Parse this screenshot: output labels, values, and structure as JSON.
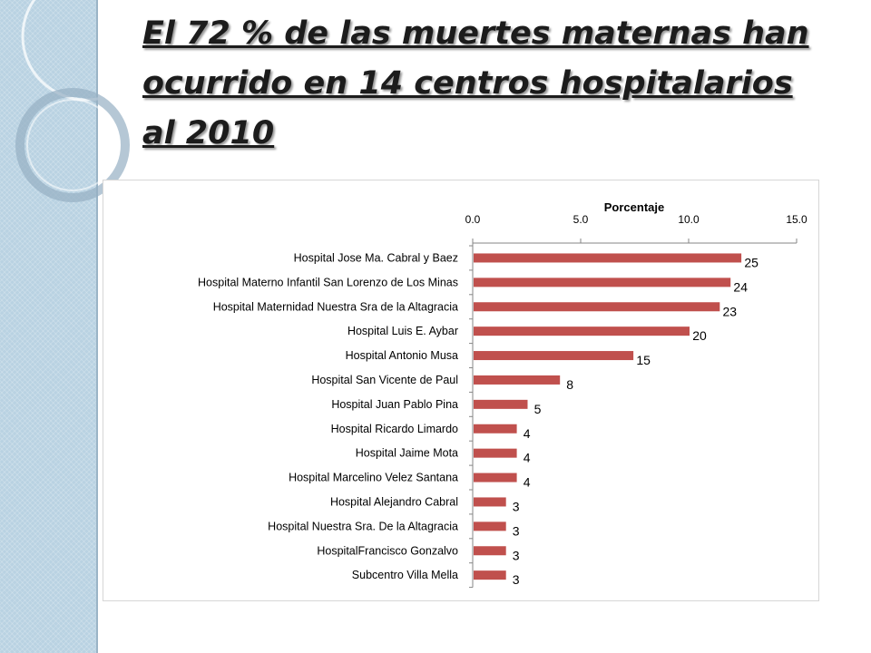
{
  "slide": {
    "title": "El 72 % de las muertes maternas han ocurrido en 14 centros hospitalarios al 2010"
  },
  "colors": {
    "bar": "#c0504d",
    "sidebar": "#b9d2e2"
  },
  "chart_data": {
    "type": "bar",
    "orientation": "horizontal",
    "title": "Porcentaje",
    "xlim": [
      0,
      15
    ],
    "xticks": [
      "0.0",
      "5.0",
      "10.0",
      "15.0"
    ],
    "axis_position": "top",
    "grid": false,
    "legend": "none",
    "categories": [
      "Hospital Jose Ma. Cabral y Baez",
      "Hospital Materno Infantil San Lorenzo de Los Minas",
      "Hospital Maternidad Nuestra Sra de la Altagracia",
      "Hospital Luis E. Aybar",
      "Hospital Antonio Musa",
      "Hospital San Vicente de Paul",
      "Hospital Juan Pablo Pina",
      "Hospital Ricardo Limardo",
      "Hospital Jaime Mota",
      "Hospital Marcelino Velez Santana",
      "Hospital Alejandro Cabral",
      "Hospital Nuestra Sra. De la Altagracia",
      "HospitalFrancisco Gonzalvo",
      "Subcentro Villa Mella"
    ],
    "values": [
      12.4,
      11.9,
      11.4,
      10.0,
      7.4,
      4.0,
      2.5,
      2.0,
      2.0,
      2.0,
      1.5,
      1.5,
      1.5,
      1.5
    ],
    "data_labels": [
      "25",
      "24",
      "23",
      "20",
      "15",
      "8",
      "5",
      "4",
      "4",
      "4",
      "3",
      "3",
      "3",
      "3"
    ]
  }
}
